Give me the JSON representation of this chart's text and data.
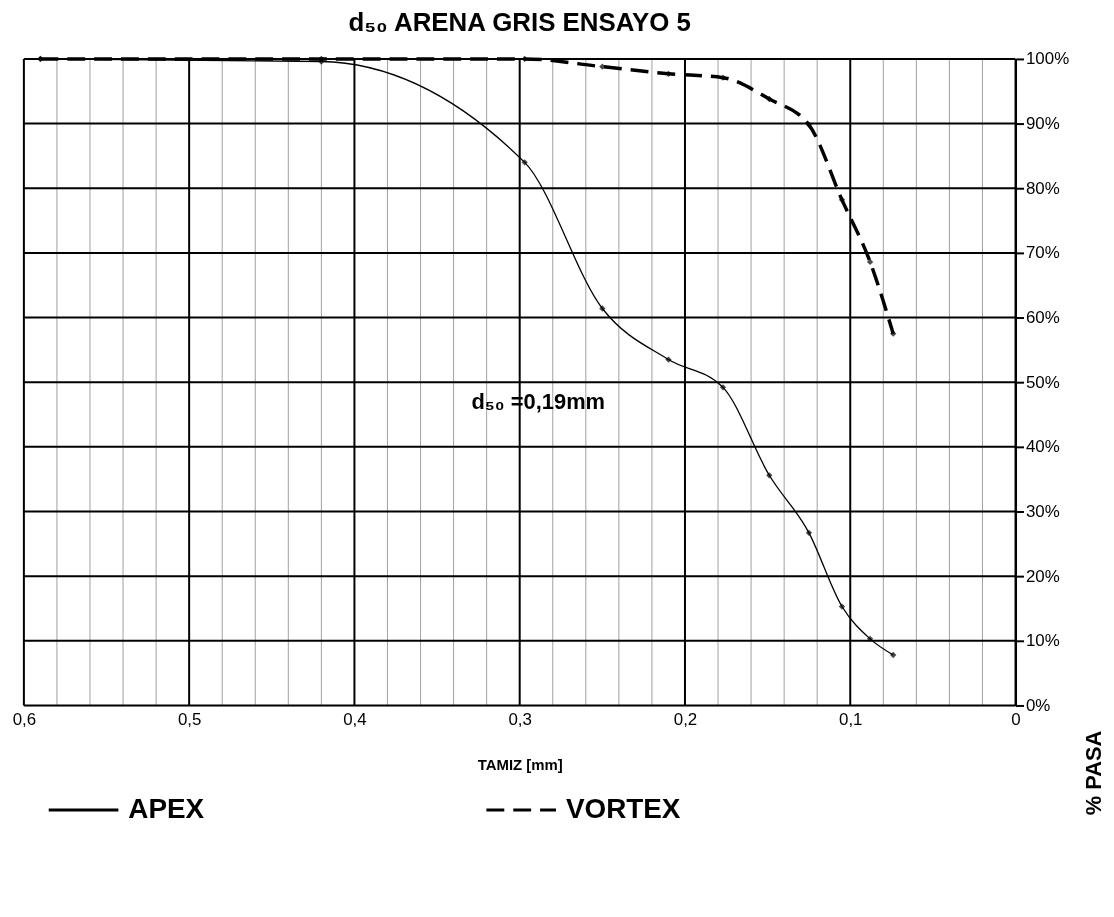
{
  "chart_data": {
    "type": "line",
    "title": "d₅₀ ARENA GRIS ENSAYO 5",
    "xlabel": "TAMIZ [mm]",
    "ylabel": "% PASA",
    "x": [
      0.59,
      0.42,
      0.297,
      0.25,
      0.21,
      0.177,
      0.149,
      0.125,
      0.105,
      0.088,
      0.074
    ],
    "series": [
      {
        "name": "APEX",
        "color": "#000000",
        "line_style": "solid",
        "values": [
          100,
          99.6,
          84,
          61.4,
          53.5,
          49.2,
          35.6,
          26.7,
          15.3,
          10.3,
          7.8
        ]
      },
      {
        "name": "VORTEX",
        "color": "#000000",
        "line_style": "dashed",
        "values": [
          100,
          100,
          100,
          98.8,
          97.7,
          97.1,
          93.8,
          89.8,
          78.2,
          68.6,
          57.5
        ]
      }
    ],
    "xlim": [
      0.6,
      0
    ],
    "xticks": [
      {
        "value": 0.6,
        "label": "0,6"
      },
      {
        "value": 0.58,
        "label": null
      },
      {
        "value": 0.56,
        "label": null
      },
      {
        "value": 0.54,
        "label": null
      },
      {
        "value": 0.52,
        "label": null
      },
      {
        "value": 0.5,
        "label": "0,5"
      },
      {
        "value": 0.48,
        "label": null
      },
      {
        "value": 0.46,
        "label": null
      },
      {
        "value": 0.44,
        "label": null
      },
      {
        "value": 0.42,
        "label": null
      },
      {
        "value": 0.4,
        "label": "0,4"
      },
      {
        "value": 0.38,
        "label": null
      },
      {
        "value": 0.36,
        "label": null
      },
      {
        "value": 0.34,
        "label": null
      },
      {
        "value": 0.32,
        "label": null
      },
      {
        "value": 0.3,
        "label": "0,3"
      },
      {
        "value": 0.28,
        "label": null
      },
      {
        "value": 0.26,
        "label": null
      },
      {
        "value": 0.24,
        "label": null
      },
      {
        "value": 0.22,
        "label": null
      },
      {
        "value": 0.2,
        "label": "0,2"
      },
      {
        "value": 0.18,
        "label": null
      },
      {
        "value": 0.16,
        "label": null
      },
      {
        "value": 0.14,
        "label": null
      },
      {
        "value": 0.12,
        "label": null
      },
      {
        "value": 0.1,
        "label": "0,1"
      },
      {
        "value": 0.08,
        "label": null
      },
      {
        "value": 0.06,
        "label": null
      },
      {
        "value": 0.04,
        "label": null
      },
      {
        "value": 0.02,
        "label": null
      },
      0
    ],
    "ylim": [
      0,
      100
    ],
    "yticks": [
      {
        "value": 0,
        "label": "0%"
      },
      {
        "value": 10,
        "label": "10%"
      },
      {
        "value": 20,
        "label": "20%"
      },
      {
        "value": 30,
        "label": "30%"
      },
      {
        "value": 40,
        "label": "40%"
      },
      {
        "value": 50,
        "label": "50%"
      },
      {
        "value": 60,
        "label": "60%"
      },
      {
        "value": 70,
        "label": "70%"
      },
      {
        "value": 80,
        "label": "80%"
      },
      {
        "value": 90,
        "label": "90%"
      },
      {
        "value": 100,
        "label": "100%"
      }
    ],
    "grid": true,
    "legend": "bottom",
    "marker": "diamond",
    "annotations": [
      "d₅₀ =0,19mm"
    ]
  }
}
